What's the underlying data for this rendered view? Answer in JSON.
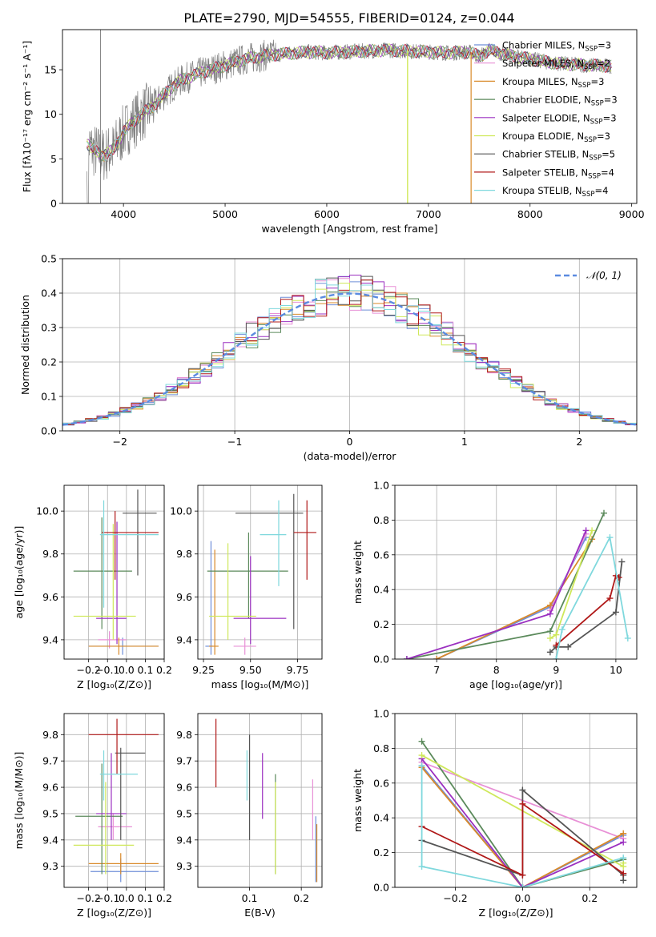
{
  "figure_title": "PLATE=2790, MJD=54555, FIBERID=0124, z=0.044",
  "colors": {
    "data_spectrum": "#808080",
    "chabrier_miles": "#6f8fd8",
    "salpeter_miles": "#e890d6",
    "kroupa_miles": "#d98a2a",
    "chabrier_elodie": "#5b8a5b",
    "salpeter_elodie": "#9b30c0",
    "kroupa_elodie": "#cfe85a",
    "chabrier_stelib": "#555555",
    "salpeter_stelib": "#b01818",
    "kroupa_stelib": "#7fd8dd",
    "gaussian": "#5b8be0",
    "grid": "#b0b0b0"
  },
  "chart_data": [
    {
      "id": "spectrum",
      "type": "line",
      "title": "PLATE=2790, MJD=54555, FIBERID=0124, z=0.044",
      "xlabel": "wavelength [Angstrom, rest frame]",
      "ylabel": "Flux [fλ10⁻¹⁷ erg cm⁻² s⁻¹ A⁻¹]",
      "xlim": [
        3400,
        9050
      ],
      "ylim": [
        0,
        19.5
      ],
      "xticks": [
        4000,
        5000,
        6000,
        7000,
        8000,
        9000
      ],
      "yticks": [
        0,
        5,
        10,
        15
      ],
      "grid": false,
      "legend": "right",
      "continuum": {
        "x": [
          3640,
          3700,
          3800,
          3900,
          4000,
          4100,
          4200,
          4300,
          4400,
          4500,
          4600,
          4800,
          5000,
          5200,
          5400,
          5600,
          5800,
          6000,
          6200,
          6400,
          6600,
          6800,
          7000,
          7200,
          7400,
          7500,
          7600,
          7800,
          8000,
          8200,
          8400,
          8600,
          8800
        ],
        "y": [
          6.8,
          6.0,
          5.4,
          6.0,
          8.0,
          9.2,
          10.2,
          11.0,
          12.2,
          13.3,
          14.0,
          14.8,
          15.5,
          16.2,
          16.6,
          16.8,
          17.0,
          16.9,
          17.0,
          17.1,
          17.2,
          17.1,
          17.0,
          16.9,
          17.0,
          16.5,
          17.2,
          16.6,
          16.2,
          15.8,
          15.6,
          15.5,
          15.4
        ]
      },
      "legend_entries": [
        {
          "label": "Chabrier MILES, N",
          "sub": "SSP",
          "suffix": "=3",
          "color": "#6f8fd8"
        },
        {
          "label": "Salpeter MILES, N",
          "sub": "SSP",
          "suffix": "=2",
          "color": "#e890d6"
        },
        {
          "label": "Kroupa MILES, N",
          "sub": "SSP",
          "suffix": "=3",
          "color": "#d98a2a"
        },
        {
          "label": "Chabrier ELODIE, N",
          "sub": "SSP",
          "suffix": "=3",
          "color": "#5b8a5b"
        },
        {
          "label": "Salpeter ELODIE, N",
          "sub": "SSP",
          "suffix": "=3",
          "color": "#9b30c0"
        },
        {
          "label": "Kroupa ELODIE, N",
          "sub": "SSP",
          "suffix": "=3",
          "color": "#cfe85a"
        },
        {
          "label": "Chabrier STELIB, N",
          "sub": "SSP",
          "suffix": "=5",
          "color": "#555555"
        },
        {
          "label": "Salpeter STELIB, N",
          "sub": "SSP",
          "suffix": "=4",
          "color": "#b01818"
        },
        {
          "label": "Kroupa STELIB, N",
          "sub": "SSP",
          "suffix": "=4",
          "color": "#7fd8dd"
        }
      ]
    },
    {
      "id": "residuals",
      "type": "histogram",
      "xlabel": "(data-model)/error",
      "ylabel": "Normed distribution",
      "xlim": [
        -2.5,
        2.5
      ],
      "ylim": [
        0,
        0.5
      ],
      "xticks": [
        -2,
        -1,
        0,
        1,
        2
      ],
      "xtick_labels": [
        "−2",
        "−1",
        "0",
        "1",
        "2"
      ],
      "yticks": [
        0.0,
        0.1,
        0.2,
        0.3,
        0.4,
        0.5
      ],
      "ytick_labels": [
        "0.0",
        "0.1",
        "0.2",
        "0.3",
        "0.4",
        "0.5"
      ],
      "grid": true,
      "legend": "top-right",
      "legend_label": "𝒩(0, 1)",
      "gaussian": {
        "mean": 0,
        "sigma": 1
      },
      "bin_width": 0.1
    },
    {
      "id": "age-vs-z",
      "type": "errorbar",
      "xlabel": "Z [log₁₀(Z/Z⊙)]",
      "ylabel": "age  [log₁₀(age/yr)]",
      "xlim": [
        -0.33,
        0.2
      ],
      "ylim": [
        9.31,
        10.12
      ],
      "xticks": [
        -0.2,
        -0.1,
        0.0,
        0.1,
        0.2
      ],
      "xtick_labels": [
        "−0.2",
        "−0.1",
        "0.0",
        "0.1",
        "0.2"
      ],
      "yticks": [
        9.4,
        9.6,
        9.8,
        10.0
      ],
      "ytick_labels": [
        "9.4",
        "9.6",
        "9.8",
        "10.0"
      ],
      "grid": true,
      "points": [
        {
          "x": -0.02,
          "y": 9.37,
          "xlo": -0.2,
          "xhi": 0.17,
          "ylo": 9.33,
          "yhi": 9.41,
          "color": "#6f8fd8"
        },
        {
          "x": -0.09,
          "y": 9.4,
          "xlo": -0.15,
          "xhi": 0.0,
          "ylo": 9.36,
          "yhi": 9.44,
          "color": "#e890d6"
        },
        {
          "x": -0.04,
          "y": 9.37,
          "xlo": -0.2,
          "xhi": 0.17,
          "ylo": 9.33,
          "yhi": 9.41,
          "color": "#d98a2a"
        },
        {
          "x": -0.13,
          "y": 9.72,
          "xlo": -0.28,
          "xhi": 0.03,
          "ylo": 9.45,
          "yhi": 9.97,
          "color": "#5b8a5b"
        },
        {
          "x": -0.05,
          "y": 9.5,
          "xlo": -0.16,
          "xhi": 0.0,
          "ylo": 9.38,
          "yhi": 9.95,
          "color": "#9b30c0"
        },
        {
          "x": -0.07,
          "y": 9.51,
          "xlo": -0.28,
          "xhi": 0.05,
          "ylo": 9.4,
          "yhi": 9.94,
          "color": "#cfe85a"
        },
        {
          "x": 0.06,
          "y": 9.99,
          "xlo": -0.02,
          "xhi": 0.16,
          "ylo": 9.7,
          "yhi": 10.1,
          "color": "#555555"
        },
        {
          "x": -0.06,
          "y": 9.9,
          "xlo": -0.13,
          "xhi": 0.17,
          "ylo": 9.68,
          "yhi": 10.0,
          "color": "#b01818"
        },
        {
          "x": -0.12,
          "y": 9.89,
          "xlo": -0.14,
          "xhi": 0.17,
          "ylo": 9.55,
          "yhi": 10.05,
          "color": "#7fd8dd"
        }
      ]
    },
    {
      "id": "age-vs-mass",
      "type": "errorbar",
      "xlabel": "mass [log₁₀(M/M⊙)]",
      "ylabel": "",
      "xlim": [
        9.22,
        9.88
      ],
      "ylim": [
        9.31,
        10.12
      ],
      "xticks": [
        9.25,
        9.5,
        9.75
      ],
      "xtick_labels": [
        "9.25",
        "9.50",
        "9.75"
      ],
      "yticks": [
        9.4,
        9.6,
        9.8,
        10.0
      ],
      "ytick_labels": [
        "9.4",
        "9.6",
        "9.8",
        "10.0"
      ],
      "grid": true,
      "points": [
        {
          "x": 9.29,
          "y": 9.37,
          "xlo": 9.26,
          "xhi": 9.3,
          "ylo": 9.33,
          "yhi": 9.86,
          "color": "#6f8fd8"
        },
        {
          "x": 9.47,
          "y": 9.37,
          "xlo": 9.41,
          "xhi": 9.53,
          "ylo": 9.33,
          "yhi": 9.41,
          "color": "#e890d6"
        },
        {
          "x": 9.31,
          "y": 9.37,
          "xlo": 9.28,
          "xhi": 9.33,
          "ylo": 9.33,
          "yhi": 9.82,
          "color": "#d98a2a"
        },
        {
          "x": 9.49,
          "y": 9.72,
          "xlo": 9.27,
          "xhi": 9.7,
          "ylo": 9.5,
          "yhi": 9.9,
          "color": "#5b8a5b"
        },
        {
          "x": 9.5,
          "y": 9.5,
          "xlo": 9.41,
          "xhi": 9.69,
          "ylo": 9.38,
          "yhi": 9.79,
          "color": "#9b30c0"
        },
        {
          "x": 9.38,
          "y": 9.51,
          "xlo": 9.28,
          "xhi": 9.53,
          "ylo": 9.4,
          "yhi": 9.85,
          "color": "#cfe85a"
        },
        {
          "x": 9.73,
          "y": 9.99,
          "xlo": 9.42,
          "xhi": 9.78,
          "ylo": 9.45,
          "yhi": 10.08,
          "color": "#555555"
        },
        {
          "x": 9.8,
          "y": 9.9,
          "xlo": 9.73,
          "xhi": 9.85,
          "ylo": 9.68,
          "yhi": 10.05,
          "color": "#b01818"
        },
        {
          "x": 9.65,
          "y": 9.89,
          "xlo": 9.55,
          "xhi": 9.69,
          "ylo": 9.65,
          "yhi": 10.05,
          "color": "#7fd8dd"
        }
      ]
    },
    {
      "id": "weight-vs-age",
      "type": "line",
      "xlabel": "age  [log₁₀(age/yr)]",
      "ylabel": "mass weight",
      "xlim": [
        6.3,
        10.35
      ],
      "ylim": [
        0,
        1.0
      ],
      "xticks": [
        7,
        8,
        9,
        10
      ],
      "xtick_labels": [
        "7",
        "8",
        "9",
        "10"
      ],
      "yticks": [
        0.0,
        0.2,
        0.4,
        0.6,
        0.8,
        1.0
      ],
      "ytick_labels": [
        "0.0",
        "0.2",
        "0.4",
        "0.6",
        "0.8",
        "1.0"
      ],
      "grid": true,
      "series": [
        {
          "x": [
            7.0,
            8.9,
            9.5
          ],
          "y": [
            0.0,
            0.3,
            0.7
          ],
          "color": "#6f8fd8"
        },
        {
          "x": [
            8.9,
            9.5
          ],
          "y": [
            0.28,
            0.72
          ],
          "color": "#e890d6"
        },
        {
          "x": [
            7.0,
            8.9,
            9.6
          ],
          "y": [
            0.0,
            0.31,
            0.69
          ],
          "color": "#d98a2a"
        },
        {
          "x": [
            6.5,
            8.9,
            9.8
          ],
          "y": [
            0.0,
            0.16,
            0.84
          ],
          "color": "#5b8a5b"
        },
        {
          "x": [
            6.5,
            8.9,
            9.5
          ],
          "y": [
            0.0,
            0.26,
            0.74
          ],
          "color": "#9b30c0"
        },
        {
          "x": [
            8.9,
            9.0,
            9.6
          ],
          "y": [
            0.12,
            0.14,
            0.74
          ],
          "color": "#cfe85a"
        },
        {
          "x": [
            8.9,
            9.0,
            9.2,
            10.0,
            10.1
          ],
          "y": [
            0.04,
            0.07,
            0.07,
            0.27,
            0.56
          ],
          "color": "#555555"
        },
        {
          "x": [
            9.0,
            9.9,
            10.0,
            10.05
          ],
          "y": [
            0.08,
            0.35,
            0.48,
            0.47
          ],
          "color": "#b01818"
        },
        {
          "x": [
            9.0,
            9.1,
            9.9,
            10.2
          ],
          "y": [
            0.0,
            0.17,
            0.7,
            0.12
          ],
          "color": "#7fd8dd"
        }
      ]
    },
    {
      "id": "mass-vs-z",
      "type": "errorbar",
      "xlabel": "Z [log₁₀(Z/Z⊙)]",
      "ylabel": "mass [log₁₀(M/M⊙)]",
      "xlim": [
        -0.33,
        0.2
      ],
      "ylim": [
        9.22,
        9.88
      ],
      "xticks": [
        -0.2,
        -0.1,
        0.0,
        0.1,
        0.2
      ],
      "xtick_labels": [
        "−0.2",
        "−0.1",
        "0.0",
        "0.1",
        "0.2"
      ],
      "yticks": [
        9.3,
        9.4,
        9.5,
        9.6,
        9.7,
        9.8
      ],
      "ytick_labels": [
        "9.3",
        "9.4",
        "9.5",
        "9.6",
        "9.7",
        "9.8"
      ],
      "grid": true,
      "points": [
        {
          "x": -0.03,
          "y": 9.28,
          "xlo": -0.19,
          "xhi": 0.17,
          "ylo": 9.24,
          "yhi": 9.33,
          "color": "#6f8fd8"
        },
        {
          "x": -0.07,
          "y": 9.45,
          "xlo": -0.15,
          "xhi": 0.03,
          "ylo": 9.4,
          "yhi": 9.5,
          "color": "#e890d6"
        },
        {
          "x": -0.03,
          "y": 9.31,
          "xlo": -0.2,
          "xhi": 0.17,
          "ylo": 9.27,
          "yhi": 9.35,
          "color": "#d98a2a"
        },
        {
          "x": -0.13,
          "y": 9.49,
          "xlo": -0.27,
          "xhi": -0.02,
          "ylo": 9.27,
          "yhi": 9.69,
          "color": "#5b8a5b"
        },
        {
          "x": -0.08,
          "y": 9.5,
          "xlo": -0.16,
          "xhi": 0.0,
          "ylo": 9.4,
          "yhi": 9.73,
          "color": "#9b30c0"
        },
        {
          "x": -0.11,
          "y": 9.38,
          "xlo": -0.28,
          "xhi": 0.04,
          "ylo": 9.27,
          "yhi": 9.62,
          "color": "#cfe85a"
        },
        {
          "x": -0.03,
          "y": 9.73,
          "xlo": -0.06,
          "xhi": 0.1,
          "ylo": 9.4,
          "yhi": 9.75,
          "color": "#555555"
        },
        {
          "x": -0.05,
          "y": 9.8,
          "xlo": -0.2,
          "xhi": 0.17,
          "ylo": 9.65,
          "yhi": 9.86,
          "color": "#b01818"
        },
        {
          "x": -0.12,
          "y": 9.65,
          "xlo": -0.14,
          "xhi": 0.06,
          "ylo": 9.55,
          "yhi": 9.74,
          "color": "#7fd8dd"
        }
      ]
    },
    {
      "id": "mass-vs-ebv",
      "type": "errorbar",
      "xlabel": "E(B-V)",
      "ylabel": "",
      "xlim": [
        0.0,
        0.24
      ],
      "ylim": [
        9.22,
        9.88
      ],
      "xticks": [
        0.1,
        0.2
      ],
      "xtick_labels": [
        "0.1",
        "0.2"
      ],
      "yticks": [
        9.3,
        9.4,
        9.5,
        9.6,
        9.7,
        9.8
      ],
      "ytick_labels": [
        "9.3",
        "9.4",
        "9.5",
        "9.6",
        "9.7",
        "9.8"
      ],
      "grid": true,
      "points": [
        {
          "x": 0.228,
          "y": 9.3,
          "ylo": 9.24,
          "yhi": 9.49,
          "color": "#6f8fd8"
        },
        {
          "x": 0.222,
          "y": 9.5,
          "ylo": 9.4,
          "yhi": 9.63,
          "color": "#e890d6"
        },
        {
          "x": 0.23,
          "y": 9.35,
          "ylo": 9.24,
          "yhi": 9.46,
          "color": "#d98a2a"
        },
        {
          "x": 0.15,
          "y": 9.45,
          "ylo": 9.27,
          "yhi": 9.65,
          "color": "#5b8a5b"
        },
        {
          "x": 0.125,
          "y": 9.6,
          "ylo": 9.48,
          "yhi": 9.73,
          "color": "#9b30c0"
        },
        {
          "x": 0.15,
          "y": 9.45,
          "ylo": 9.27,
          "yhi": 9.62,
          "color": "#cfe85a"
        },
        {
          "x": 0.1,
          "y": 9.6,
          "ylo": 9.4,
          "yhi": 9.8,
          "color": "#555555"
        },
        {
          "x": 0.035,
          "y": 9.73,
          "ylo": 9.6,
          "yhi": 9.86,
          "color": "#b01818"
        },
        {
          "x": 0.095,
          "y": 9.65,
          "ylo": 9.55,
          "yhi": 9.74,
          "color": "#7fd8dd"
        }
      ]
    },
    {
      "id": "weight-vs-z",
      "type": "line",
      "xlabel": "Z [log₁₀(Z/Z⊙)]",
      "ylabel": "mass weight",
      "xlim": [
        -0.38,
        0.34
      ],
      "ylim": [
        0,
        1.0
      ],
      "xticks": [
        -0.2,
        0.0,
        0.2
      ],
      "xtick_labels": [
        "−0.2",
        "0.0",
        "0.2"
      ],
      "yticks": [
        0.0,
        0.2,
        0.4,
        0.6,
        0.8,
        1.0
      ],
      "ytick_labels": [
        "0.0",
        "0.2",
        "0.4",
        "0.6",
        "0.8",
        "1.0"
      ],
      "grid": true,
      "series": [
        {
          "x": [
            -0.3,
            0.0,
            0.3
          ],
          "y": [
            0.7,
            0.0,
            0.3
          ],
          "color": "#6f8fd8"
        },
        {
          "x": [
            -0.3,
            0.3
          ],
          "y": [
            0.72,
            0.28
          ],
          "color": "#e890d6"
        },
        {
          "x": [
            -0.3,
            0.0,
            0.3
          ],
          "y": [
            0.69,
            0.0,
            0.31
          ],
          "color": "#d98a2a"
        },
        {
          "x": [
            -0.3,
            0.0,
            0.3
          ],
          "y": [
            0.84,
            0.0,
            0.16
          ],
          "color": "#5b8a5b"
        },
        {
          "x": [
            -0.3,
            0.0,
            0.3
          ],
          "y": [
            0.74,
            0.0,
            0.26
          ],
          "color": "#9b30c0"
        },
        {
          "x": [
            -0.3,
            0.3,
            0.3
          ],
          "y": [
            0.76,
            0.12,
            0.14
          ],
          "color": "#cfe85a"
        },
        {
          "x": [
            -0.3,
            0.0,
            0.0,
            0.3,
            0.3
          ],
          "y": [
            0.27,
            0.07,
            0.56,
            0.07,
            0.04
          ],
          "color": "#555555"
        },
        {
          "x": [
            -0.3,
            0.0,
            0.0,
            0.3
          ],
          "y": [
            0.35,
            0.07,
            0.48,
            0.08
          ],
          "color": "#b01818"
        },
        {
          "x": [
            -0.3,
            -0.3,
            0.0,
            0.3
          ],
          "y": [
            0.7,
            0.12,
            0.0,
            0.17
          ],
          "color": "#7fd8dd"
        }
      ]
    }
  ]
}
